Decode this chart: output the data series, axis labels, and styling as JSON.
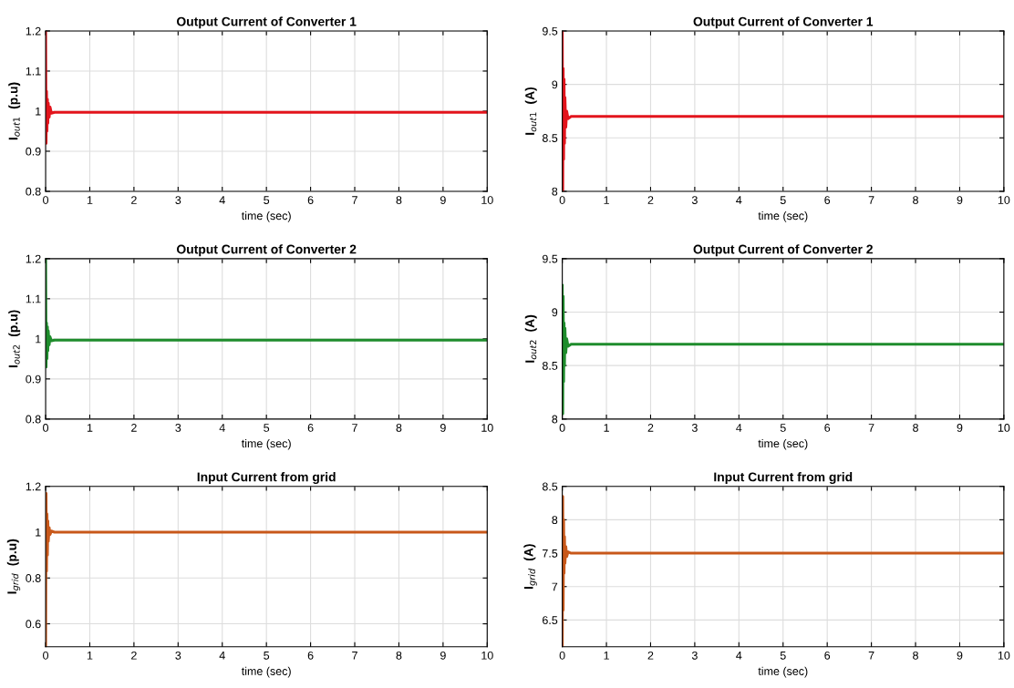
{
  "chart_data": [
    {
      "type": "line",
      "title": "Output Current of Converter 1",
      "xlabel": "time (sec)",
      "ylabel": "I$_{out1}$  (p.u)",
      "xlim": [
        0,
        10
      ],
      "xticks": [
        0,
        1,
        2,
        3,
        4,
        5,
        6,
        7,
        8,
        9,
        10
      ],
      "ylim": [
        0.8,
        1.2
      ],
      "yticks": [
        0.8,
        0.9,
        1,
        1.1,
        1.2
      ],
      "grid": true,
      "series": [
        {
          "color": "#e3141c",
          "x": [
            0,
            0.01,
            0.02,
            0.03,
            0.04,
            0.05,
            0.06,
            0.08,
            0.1,
            0.13,
            0.2,
            10
          ],
          "values": [
            1.2,
            0.92,
            1.05,
            0.95,
            1.03,
            0.97,
            1.02,
            0.985,
            1.01,
            0.995,
            0.997,
            0.997
          ]
        }
      ]
    },
    {
      "type": "line",
      "title": "Output Current of Converter 1",
      "xlabel": "time (sec)",
      "ylabel": "I$_{out1}$  (A)",
      "xlim": [
        0,
        10
      ],
      "xticks": [
        0,
        1,
        2,
        3,
        4,
        5,
        6,
        7,
        8,
        9,
        10
      ],
      "ylim": [
        8,
        9.5
      ],
      "yticks": [
        8,
        8.5,
        9,
        9.5
      ],
      "grid": true,
      "series": [
        {
          "color": "#e3141c",
          "x": [
            0,
            0.01,
            0.02,
            0.03,
            0.04,
            0.05,
            0.06,
            0.08,
            0.1,
            0.13,
            0.2,
            10
          ],
          "values": [
            9.5,
            8.0,
            9.15,
            8.3,
            9.05,
            8.45,
            8.88,
            8.6,
            8.75,
            8.68,
            8.7,
            8.7
          ]
        }
      ]
    },
    {
      "type": "line",
      "title": "Output Current of Converter 2",
      "xlabel": "time (sec)",
      "ylabel": "I$_{out2}$  (p.u)",
      "xlim": [
        0,
        10
      ],
      "xticks": [
        0,
        1,
        2,
        3,
        4,
        5,
        6,
        7,
        8,
        9,
        10
      ],
      "ylim": [
        0.8,
        1.2
      ],
      "yticks": [
        0.8,
        0.9,
        1,
        1.1,
        1.2
      ],
      "grid": true,
      "series": [
        {
          "color": "#1e8c2c",
          "x": [
            0,
            0.01,
            0.02,
            0.03,
            0.04,
            0.05,
            0.06,
            0.08,
            0.1,
            0.13,
            0.2,
            10
          ],
          "values": [
            1.2,
            0.93,
            1.04,
            0.95,
            1.03,
            0.97,
            1.02,
            0.985,
            1.005,
            0.995,
            0.997,
            0.997
          ]
        }
      ]
    },
    {
      "type": "line",
      "title": "Output Current of Converter 2",
      "xlabel": "time (sec)",
      "ylabel": "I$_{out2}$  (A)",
      "xlim": [
        0,
        10
      ],
      "xticks": [
        0,
        1,
        2,
        3,
        4,
        5,
        6,
        7,
        8,
        9,
        10
      ],
      "ylim": [
        8,
        9.5
      ],
      "yticks": [
        8,
        8.5,
        9,
        9.5
      ],
      "grid": true,
      "series": [
        {
          "color": "#1e8c2c",
          "x": [
            0,
            0.01,
            0.02,
            0.03,
            0.04,
            0.05,
            0.06,
            0.08,
            0.1,
            0.13,
            0.2,
            10
          ],
          "values": [
            9.25,
            8.05,
            9.15,
            8.35,
            8.9,
            8.5,
            8.85,
            8.62,
            8.75,
            8.68,
            8.7,
            8.7
          ]
        }
      ]
    },
    {
      "type": "line",
      "title": "Input Current from grid",
      "xlabel": "time (sec)",
      "ylabel": "I$_{grid}$  (p.u)",
      "xlim": [
        0,
        10
      ],
      "xticks": [
        0,
        1,
        2,
        3,
        4,
        5,
        6,
        7,
        8,
        9,
        10
      ],
      "ylim": [
        0.5,
        1.2
      ],
      "yticks": [
        0.6,
        0.8,
        1,
        1.2
      ],
      "grid": true,
      "series": [
        {
          "color": "#c8581a",
          "x": [
            0,
            0.01,
            0.02,
            0.03,
            0.04,
            0.05,
            0.06,
            0.08,
            0.1,
            0.13,
            0.2,
            10
          ],
          "values": [
            0.5,
            1.17,
            0.83,
            1.08,
            0.9,
            1.05,
            0.96,
            1.02,
            0.99,
            1.005,
            1.0,
            1.0
          ]
        }
      ]
    },
    {
      "type": "line",
      "title": "Input Current from grid",
      "xlabel": "time (sec)",
      "ylabel": "I$_{grid}$  (A)",
      "xlim": [
        0,
        10
      ],
      "xticks": [
        0,
        1,
        2,
        3,
        4,
        5,
        6,
        7,
        8,
        9,
        10
      ],
      "ylim": [
        6.1,
        8.5
      ],
      "yticks": [
        6.5,
        7,
        7.5,
        8,
        8.5
      ],
      "grid": true,
      "series": [
        {
          "color": "#c8581a",
          "x": [
            0,
            0.01,
            0.02,
            0.03,
            0.04,
            0.05,
            0.06,
            0.08,
            0.1,
            0.13,
            0.2,
            10
          ],
          "values": [
            6.1,
            8.35,
            6.65,
            8.0,
            7.2,
            7.75,
            7.35,
            7.6,
            7.45,
            7.52,
            7.5,
            7.5
          ]
        }
      ]
    }
  ]
}
